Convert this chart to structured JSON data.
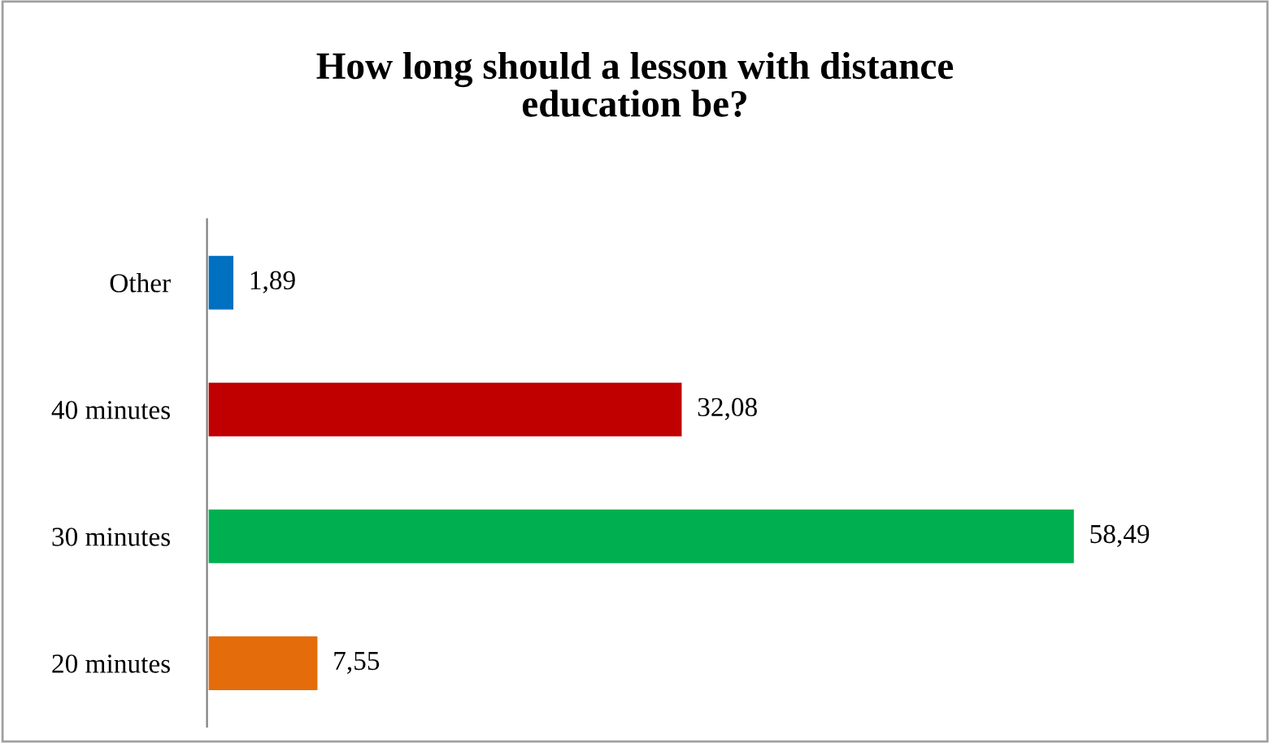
{
  "chart_data": {
    "type": "bar",
    "orientation": "horizontal",
    "title": "How long should a lesson with distance\neducation be?",
    "categories": [
      "Other",
      "40 minutes",
      "30 minutes",
      "20 minutes"
    ],
    "values": [
      1.89,
      32.08,
      58.49,
      7.55
    ],
    "colors": [
      "#0070c0",
      "#c00000",
      "#00b050",
      "#e46c0a"
    ],
    "value_labels": [
      "1,89",
      "32,08",
      "58,49",
      "7,55"
    ],
    "grid": false,
    "legend": false,
    "tick_labels": "y"
  }
}
